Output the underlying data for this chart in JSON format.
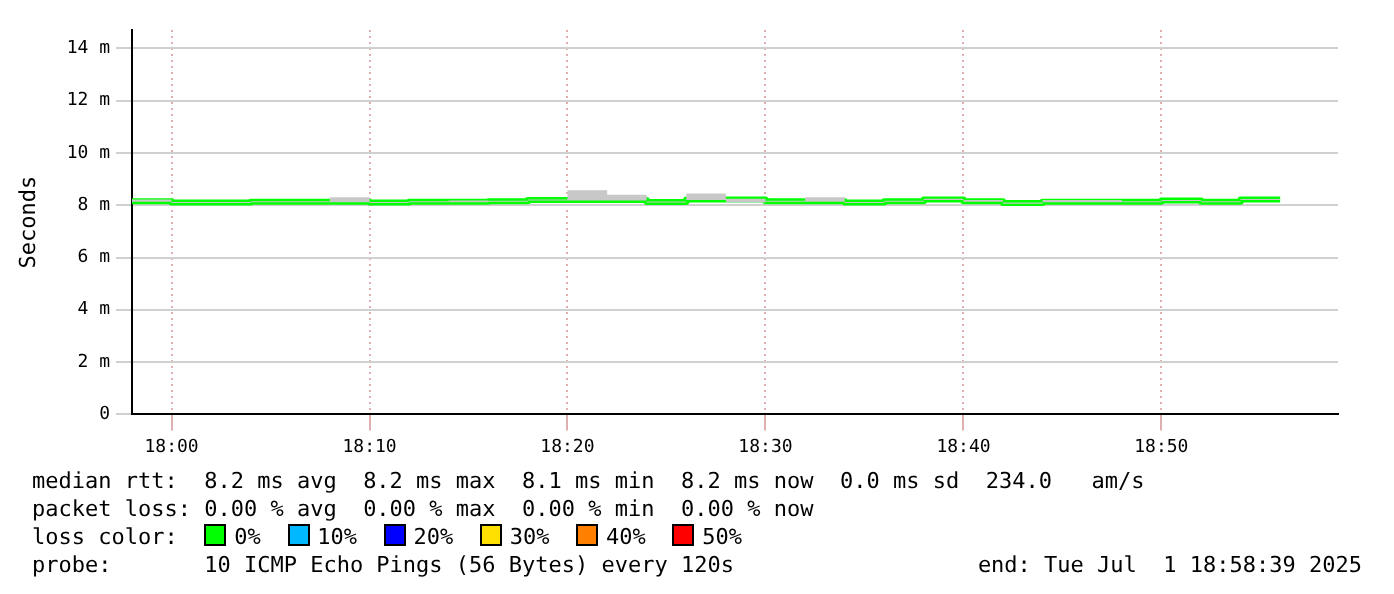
{
  "chart_data": {
    "type": "step",
    "ylabel": "Seconds",
    "x": [
      17.9667,
      18.0,
      18.0333,
      18.0667,
      18.1,
      18.1333,
      18.1667,
      18.2,
      18.2333,
      18.2667,
      18.3,
      18.3333,
      18.3667,
      18.4,
      18.4333,
      18.4667,
      18.5,
      18.5333,
      18.5667,
      18.6,
      18.6333,
      18.6667,
      18.7,
      18.7333,
      18.7667,
      18.8,
      18.8333,
      18.8667,
      18.9,
      18.9333
    ],
    "series": [
      {
        "color": "#00ff00",
        "values": [
          8.15,
          8.15,
          8.1,
          8.1,
          8.13,
          8.13,
          8.13,
          8.1,
          8.13,
          8.13,
          8.15,
          8.2,
          8.2,
          8.2,
          8.12,
          8.22,
          8.22,
          8.15,
          8.15,
          8.1,
          8.15,
          8.22,
          8.15,
          8.08,
          8.13,
          8.13,
          8.13,
          8.18,
          8.13,
          8.22
        ],
        "lower": [
          8.13,
          8.13,
          8.08,
          8.08,
          8.11,
          8.11,
          8.11,
          8.08,
          8.11,
          8.11,
          8.13,
          8.18,
          8.18,
          8.18,
          8.1,
          8.2,
          8.1,
          8.13,
          8.13,
          8.08,
          8.13,
          8.2,
          8.13,
          8.06,
          8.11,
          8.11,
          8.11,
          8.16,
          8.11,
          8.2
        ],
        "upper": [
          8.15,
          8.22,
          8.12,
          8.12,
          8.15,
          8.15,
          8.3,
          8.12,
          8.15,
          8.18,
          8.17,
          8.22,
          8.57,
          8.4,
          8.14,
          8.45,
          8.25,
          8.17,
          8.3,
          8.12,
          8.17,
          8.25,
          8.2,
          8.1,
          8.2,
          8.2,
          8.15,
          8.2,
          8.15,
          8.24
        ]
      }
    ],
    "xlim": [
      17.9667,
      18.982
    ],
    "xticks": [
      {
        "value": 18,
        "label": "18:00"
      },
      {
        "value": 18.1667,
        "label": "18:10"
      },
      {
        "value": 18.3333,
        "label": "18:20"
      },
      {
        "value": 18.5,
        "label": "18:30"
      },
      {
        "value": 18.6667,
        "label": "18:40"
      },
      {
        "value": 18.8333,
        "label": "18:50"
      }
    ],
    "ylim": [
      0,
      14.7
    ],
    "yticks": [
      {
        "value": 0,
        "label": "0"
      },
      {
        "value": 2,
        "label": "2 m"
      },
      {
        "value": 4,
        "label": "4 m"
      },
      {
        "value": 6,
        "label": "6 m"
      },
      {
        "value": 8,
        "label": "8 m"
      },
      {
        "value": 10,
        "label": "10 m"
      },
      {
        "value": 12,
        "label": "12 m"
      },
      {
        "value": 14,
        "label": "14 m"
      }
    ],
    "grid": true,
    "legend": false,
    "annotations": [
      "median rtt:  8.2 ms avg  8.2 ms max  8.1 ms min  8.2 ms now  0.0 ms sd  234.0   am/s",
      "packet loss: 0.00 % avg  0.00 % max  0.00 % min  0.00 % now",
      "loss color:",
      "0%",
      "10%",
      "20%",
      "30%",
      "40%",
      "50%",
      "probe:       10 ICMP Echo Pings (56 Bytes) every 120s",
      "end: Tue Jul  1 18:58:39 2025"
    ]
  }
}
